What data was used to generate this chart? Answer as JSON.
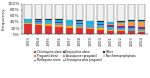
{
  "years": [
    "1993",
    "1994",
    "1995",
    "1996",
    "1997",
    "1998",
    "1999",
    "2000",
    "2001",
    "2002",
    "2003",
    "2004"
  ],
  "series": {
    "Chloroquine alone": [
      0.34,
      0.3,
      0.28,
      0.25,
      0.22,
      0.2,
      0.18,
      0.15,
      0.12,
      0.1,
      0.09,
      0.08
    ],
    "Proguanil alone": [
      0.04,
      0.04,
      0.04,
      0.05,
      0.05,
      0.05,
      0.04,
      0.04,
      0.03,
      0.03,
      0.03,
      0.02
    ],
    "Mefloquine alone": [
      0.04,
      0.06,
      0.07,
      0.08,
      0.09,
      0.1,
      0.1,
      0.1,
      0.1,
      0.09,
      0.08,
      0.07
    ],
    "Doxycycline alone": [
      0.02,
      0.02,
      0.02,
      0.02,
      0.02,
      0.02,
      0.03,
      0.03,
      0.04,
      0.05,
      0.06,
      0.07
    ],
    "Atovaquone+proguanil": [
      0.0,
      0.0,
      0.0,
      0.0,
      0.0,
      0.0,
      0.0,
      0.02,
      0.05,
      0.1,
      0.14,
      0.17
    ],
    "Chloroquine plus proguanil": [
      0.05,
      0.06,
      0.06,
      0.07,
      0.07,
      0.07,
      0.07,
      0.06,
      0.05,
      0.04,
      0.03,
      0.03
    ],
    "Other": [
      0.02,
      0.02,
      0.02,
      0.02,
      0.02,
      0.02,
      0.02,
      0.02,
      0.02,
      0.02,
      0.02,
      0.02
    ],
    "No chemoprophylaxis": [
      0.49,
      0.5,
      0.51,
      0.51,
      0.53,
      0.54,
      0.56,
      0.58,
      0.59,
      0.57,
      0.55,
      0.54
    ]
  },
  "colors": {
    "Chloroquine alone": "#d93030",
    "Proguanil alone": "#f5a623",
    "Mefloquine alone": "#4bacc6",
    "Doxycycline alone": "#7030a0",
    "Atovaquone+proguanil": "#f79646",
    "Chloroquine plus proguanil": "#17b5e8",
    "Other": "#1a1a1a",
    "No chemoprophylaxis": "#f0f0f0"
  },
  "ylabel": "Frequency",
  "ylim": [
    0,
    1
  ],
  "yticks": [
    0.0,
    0.2,
    0.4,
    0.6,
    0.8,
    1.0
  ],
  "ytick_labels": [
    "0%",
    "20%",
    "40%",
    "60%",
    "80%",
    "100%"
  ],
  "legend_order": [
    "Chloroquine alone",
    "Proguanil alone",
    "Mefloquine alone",
    "Doxycycline alone",
    "Atovaquone+proguanil",
    "Chloroquine plus proguanil",
    "Other",
    "No chemoprophylaxis"
  ]
}
